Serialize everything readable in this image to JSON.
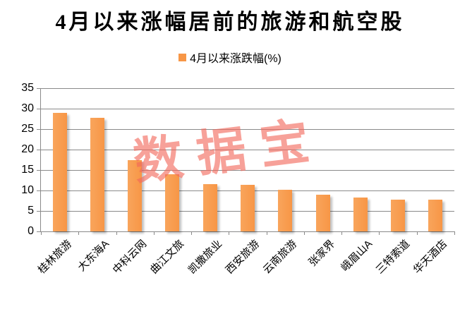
{
  "title": "4月以来涨幅居前的旅游和航空股",
  "legend": {
    "label": "4月以来涨跌幅(%)"
  },
  "watermark": "数据宝",
  "colors": {
    "bar": "#F79646",
    "bar_light": "#F9A55C",
    "grid": "#8A8A8A",
    "axis": "#8A8A8A",
    "watermark": "#F3685C"
  },
  "chart_data": {
    "type": "bar",
    "title": "4月以来涨幅居前的旅游和航空股",
    "series_name": "4月以来涨跌幅(%)",
    "categories": [
      "桂林旅游",
      "大东海A",
      "中科云网",
      "曲江文旅",
      "凯撒旅业",
      "西安旅游",
      "云南旅游",
      "张家界",
      "峨眉山A",
      "三特索道",
      "华天酒店"
    ],
    "values": [
      29.0,
      27.8,
      17.4,
      13.9,
      11.6,
      11.3,
      10.2,
      9.0,
      8.3,
      7.8,
      7.8
    ],
    "xlabel": "",
    "ylabel": "",
    "ylim": [
      0,
      35
    ],
    "ytick_step": 5,
    "grid": true,
    "legend_position": "top",
    "bar_color": "#F79646"
  }
}
